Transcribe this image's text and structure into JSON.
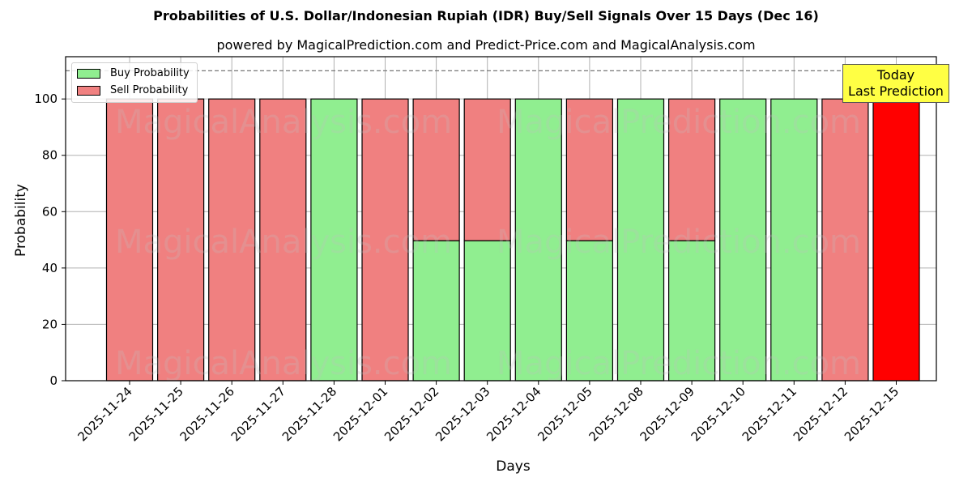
{
  "header": {
    "title": "Probabilities of U.S. Dollar/Indonesian Rupiah (IDR) Buy/Sell Signals Over 15 Days (Dec 16)",
    "subtitle": "powered by MagicalPrediction.com and Predict-Price.com and MagicalAnalysis.com"
  },
  "legend": {
    "buy_label": "Buy Probability",
    "sell_label": "Sell Probability"
  },
  "annotation": {
    "line1": "Today",
    "line2": "Last Prediction"
  },
  "axes": {
    "xlabel": "Days",
    "ylabel": "Probability",
    "yticks": [
      "0",
      "20",
      "40",
      "60",
      "80",
      "100"
    ]
  },
  "colors": {
    "buy": "#90ee90",
    "sell": "#f08080",
    "today_sell": "#ff0000",
    "annotation_bg": "#ffff44"
  },
  "watermarks": [
    "MagicalAnalysis.com",
    "MagicalPrediction.com"
  ],
  "chart_data": {
    "type": "bar",
    "stacked": true,
    "title": "Probabilities of U.S. Dollar/Indonesian Rupiah (IDR) Buy/Sell Signals Over 15 Days (Dec 16)",
    "subtitle": "powered by MagicalPrediction.com and Predict-Price.com and MagicalAnalysis.com",
    "xlabel": "Days",
    "ylabel": "Probability",
    "ylim": [
      0,
      115
    ],
    "yticks": [
      0,
      20,
      40,
      60,
      80,
      100
    ],
    "grid": true,
    "legend_position": "upper left",
    "reference_line": {
      "y": 110,
      "style": "dashed"
    },
    "categories": [
      "2025-11-24",
      "2025-11-25",
      "2025-11-26",
      "2025-11-27",
      "2025-11-28",
      "2025-12-01",
      "2025-12-02",
      "2025-12-03",
      "2025-12-04",
      "2025-12-05",
      "2025-12-08",
      "2025-12-09",
      "2025-12-10",
      "2025-12-11",
      "2025-12-12",
      "2025-12-15"
    ],
    "series": [
      {
        "name": "Buy Probability",
        "color": "#90ee90",
        "values": [
          0,
          0,
          0,
          0,
          100,
          0,
          49.7,
          49.7,
          100,
          49.7,
          100,
          49.7,
          100,
          100,
          0,
          0
        ]
      },
      {
        "name": "Sell Probability",
        "color": "#f08080",
        "values": [
          100,
          100,
          100,
          100,
          0,
          100,
          50.3,
          50.3,
          0,
          50.3,
          0,
          50.3,
          0,
          0,
          100,
          100
        ]
      }
    ],
    "annotations": [
      {
        "text": "Today\nLast Prediction",
        "x": "2025-12-15",
        "highlight_color": "#ff0000"
      }
    ]
  }
}
